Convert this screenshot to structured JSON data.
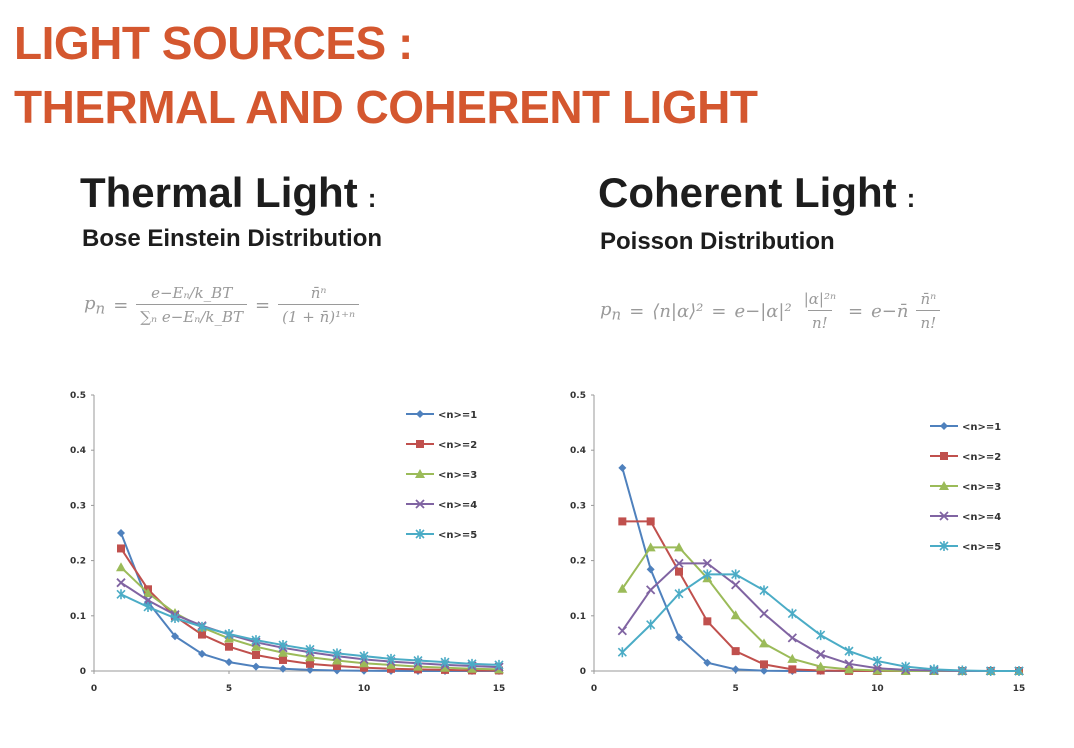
{
  "slide": {
    "title_line1": "LIGHT SOURCES :",
    "title_line2": "THERMAL AND COHERENT LIGHT",
    "accent_color": "#d4572f"
  },
  "left_panel": {
    "title": "Thermal Light",
    "colon": ":",
    "subtitle": "Bose Einstein Distribution",
    "formula": {
      "lhs": "p",
      "lhs_sub": "n",
      "eq": "=",
      "frac1_num": "e−Eₙ/k_BT",
      "frac1_den": "∑ₙ e−Eₙ/k_BT",
      "frac2_num": "n̄ⁿ",
      "frac2_den": "(1 + n̄)¹⁺ⁿ"
    }
  },
  "right_panel": {
    "title": "Coherent Light",
    "colon": ":",
    "subtitle": "Poisson Distribution",
    "formula": {
      "lhs": "p",
      "lhs_sub": "n",
      "eq": "=",
      "bracket": "⟨n|α⟩²",
      "exp_term": "e−|α|²",
      "frac1_num": "|α|²ⁿ",
      "frac1_den": "n!",
      "exp_term2": "e−n̄",
      "frac2_num": "n̄ⁿ",
      "frac2_den": "n!"
    }
  },
  "chart_data": [
    {
      "type": "line",
      "panel": "left",
      "xlim": [
        0,
        15
      ],
      "ylim": [
        0,
        0.5
      ],
      "xticks": [
        "0",
        "5",
        "10",
        "15"
      ],
      "yticks": [
        "0",
        "0.1",
        "0.2",
        "0.3",
        "0.4",
        "0.5"
      ],
      "legend_position": "top-right",
      "x": [
        1,
        2,
        3,
        4,
        5,
        6,
        7,
        8,
        9,
        10,
        11,
        12,
        13,
        14,
        15
      ],
      "series": [
        {
          "name": "<n>=1",
          "color": "#4f81bd",
          "marker": "diamond",
          "values": [
            0.25,
            0.125,
            0.063,
            0.031,
            0.016,
            0.008,
            0.004,
            0.002,
            0.001,
            0.0005,
            0.0002,
            0.0001,
            0.0001,
            0.0,
            0.0
          ]
        },
        {
          "name": "<n>=2",
          "color": "#c0504d",
          "marker": "square",
          "values": [
            0.222,
            0.148,
            0.099,
            0.066,
            0.044,
            0.029,
            0.02,
            0.013,
            0.009,
            0.006,
            0.004,
            0.003,
            0.002,
            0.001,
            0.001
          ]
        },
        {
          "name": "<n>=3",
          "color": "#9bbb59",
          "marker": "triangle",
          "values": [
            0.188,
            0.141,
            0.105,
            0.079,
            0.059,
            0.044,
            0.033,
            0.025,
            0.019,
            0.014,
            0.011,
            0.008,
            0.006,
            0.004,
            0.003
          ]
        },
        {
          "name": "<n>=4",
          "color": "#8064a2",
          "marker": "x",
          "values": [
            0.16,
            0.128,
            0.102,
            0.082,
            0.066,
            0.052,
            0.042,
            0.034,
            0.027,
            0.021,
            0.017,
            0.014,
            0.011,
            0.009,
            0.007
          ]
        },
        {
          "name": "<n>=5",
          "color": "#4bacc6",
          "marker": "star",
          "values": [
            0.139,
            0.116,
            0.096,
            0.08,
            0.067,
            0.056,
            0.047,
            0.039,
            0.032,
            0.027,
            0.022,
            0.019,
            0.016,
            0.013,
            0.011
          ]
        }
      ]
    },
    {
      "type": "line",
      "panel": "right",
      "xlim": [
        0,
        15
      ],
      "ylim": [
        0,
        0.5
      ],
      "xticks": [
        "0",
        "5",
        "10",
        "15"
      ],
      "yticks": [
        "0",
        "0.1",
        "0.2",
        "0.3",
        "0.4",
        "0.5"
      ],
      "legend_position": "top-right",
      "x": [
        1,
        2,
        3,
        4,
        5,
        6,
        7,
        8,
        9,
        10,
        11,
        12,
        13,
        14,
        15
      ],
      "series": [
        {
          "name": "<n>=1",
          "color": "#4f81bd",
          "marker": "diamond",
          "values": [
            0.368,
            0.184,
            0.061,
            0.015,
            0.003,
            0.0005,
            0.0001,
            0.0,
            0.0,
            0.0,
            0.0,
            0.0,
            0.0,
            0.0,
            0.0
          ]
        },
        {
          "name": "<n>=2",
          "color": "#c0504d",
          "marker": "square",
          "values": [
            0.271,
            0.271,
            0.18,
            0.09,
            0.036,
            0.012,
            0.003,
            0.001,
            0.0002,
            0.0,
            0.0,
            0.0,
            0.0,
            0.0,
            0.0
          ]
        },
        {
          "name": "<n>=3",
          "color": "#9bbb59",
          "marker": "triangle",
          "values": [
            0.149,
            0.224,
            0.224,
            0.168,
            0.101,
            0.05,
            0.022,
            0.008,
            0.003,
            0.001,
            0.0,
            0.0,
            0.0,
            0.0,
            0.0
          ]
        },
        {
          "name": "<n>=4",
          "color": "#8064a2",
          "marker": "x",
          "values": [
            0.073,
            0.147,
            0.195,
            0.195,
            0.156,
            0.104,
            0.06,
            0.03,
            0.013,
            0.005,
            0.002,
            0.001,
            0.0,
            0.0,
            0.0
          ]
        },
        {
          "name": "<n>=5",
          "color": "#4bacc6",
          "marker": "star",
          "values": [
            0.034,
            0.084,
            0.14,
            0.175,
            0.175,
            0.146,
            0.104,
            0.065,
            0.036,
            0.018,
            0.008,
            0.003,
            0.001,
            0.0,
            0.0
          ]
        }
      ]
    }
  ]
}
